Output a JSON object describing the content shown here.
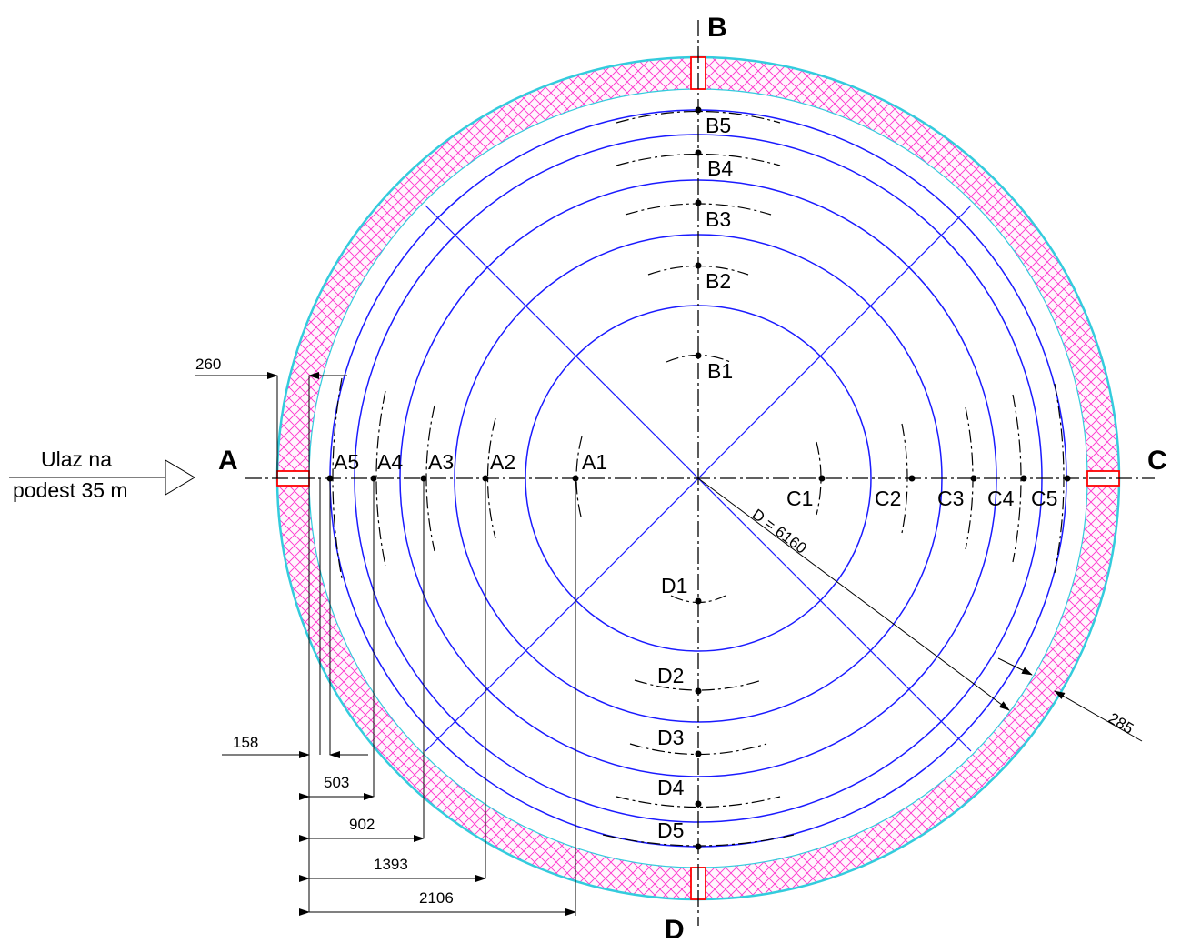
{
  "axes": {
    "a": "A",
    "b": "B",
    "c": "C",
    "d": "D"
  },
  "entry": {
    "line1": "Ulaz na",
    "line2": "podest 35 m"
  },
  "points": {
    "a": [
      "A1",
      "A2",
      "A3",
      "A4",
      "A5"
    ],
    "b": [
      "B1",
      "B2",
      "B3",
      "B4",
      "B5"
    ],
    "c": [
      "C1",
      "C2",
      "C3",
      "C4",
      "C5"
    ],
    "d": [
      "D1",
      "D2",
      "D3",
      "D4",
      "D5"
    ]
  },
  "dimensions": {
    "wall_inner_offset": "260",
    "a5": "158",
    "a4": "503",
    "a3": "902",
    "a2": "1393",
    "a1": "2106",
    "diameter": "D = 6160",
    "wall_thickness": "285"
  },
  "colors": {
    "rings": "#1a1aff",
    "wall_hatch": "#ff33cc",
    "outer_edge": "#33ccdd",
    "openings": "#ff0000"
  }
}
